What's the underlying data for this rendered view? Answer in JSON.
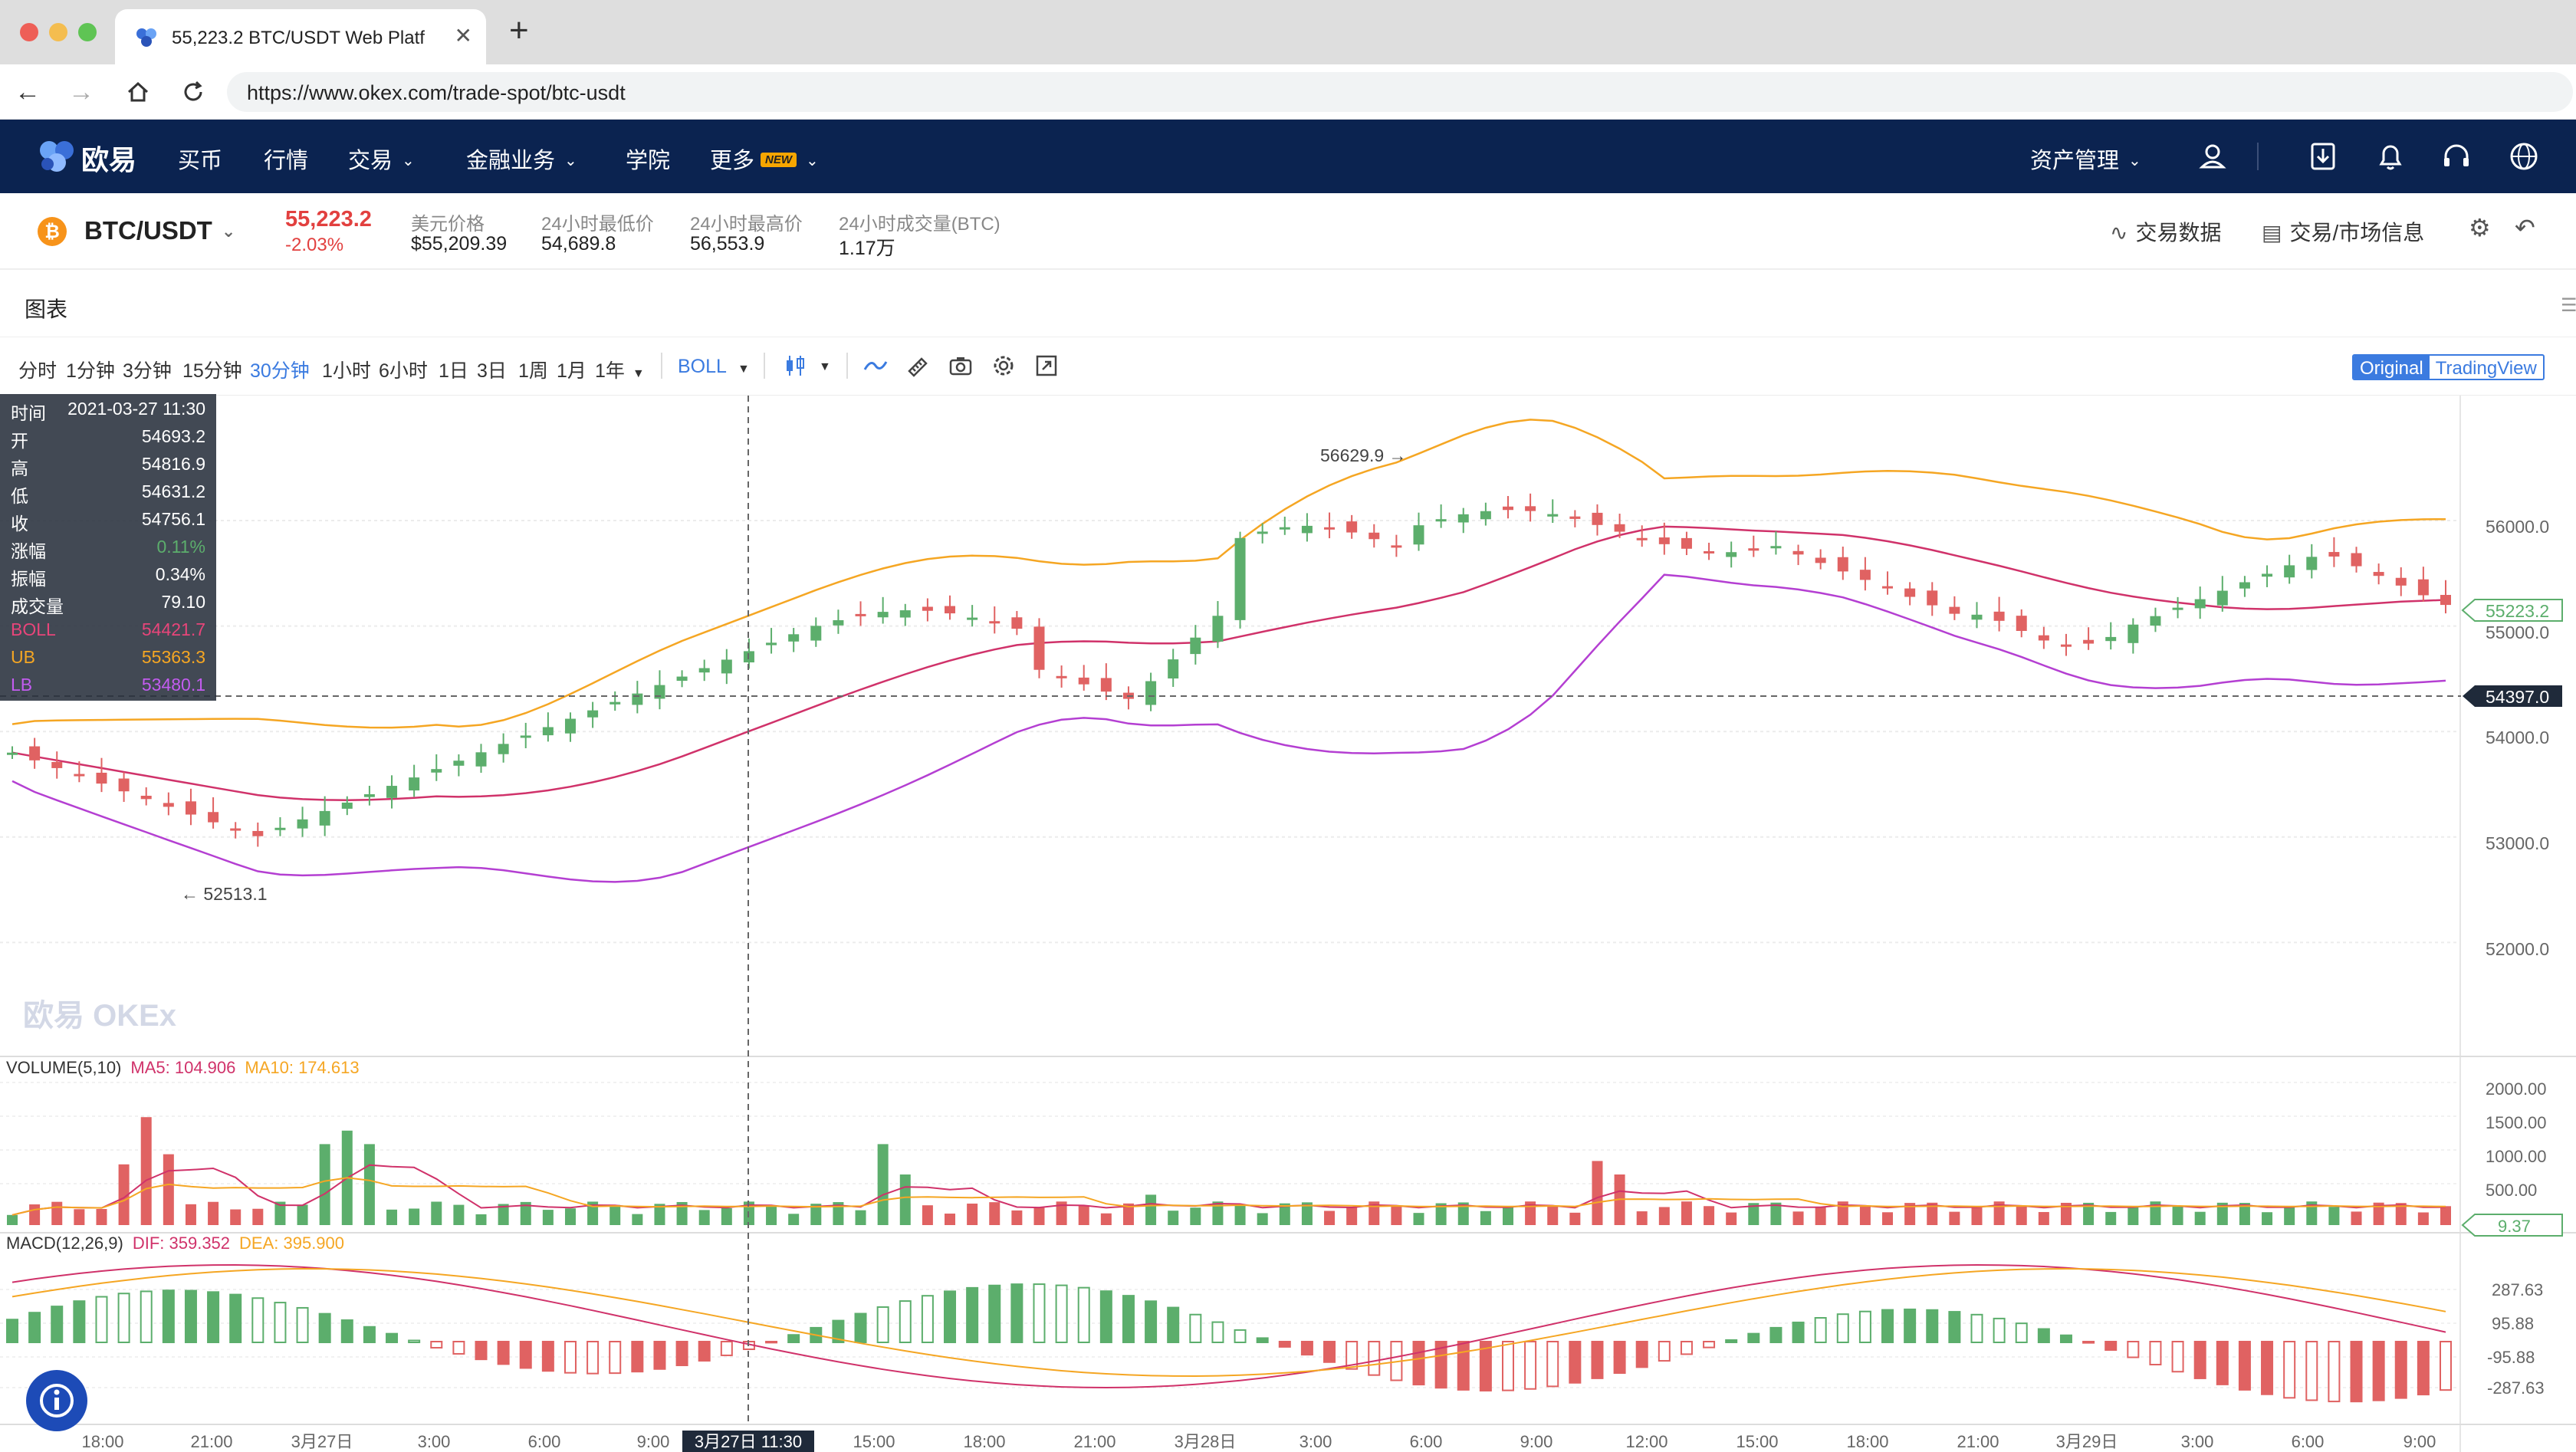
{
  "browser": {
    "tab_title": "55,223.2 BTC/USDT Web Platf",
    "url": "https://www.okex.com/trade-spot/btc-usdt"
  },
  "site_nav": {
    "logo_text": "欧易",
    "items": [
      "买币",
      "行情",
      "交易",
      "金融业务",
      "学院",
      "更多"
    ],
    "new_badge": "NEW",
    "asset_mgmt": "资产管理"
  },
  "ticker": {
    "pair": "BTC/USDT",
    "price": "55,223.2",
    "change": "-2.03%",
    "usd_label": "美元价格",
    "usd_value": "$55,209.39",
    "low_label": "24小时最低价",
    "low_value": "54,689.8",
    "high_label": "24小时最高价",
    "high_value": "56,553.9",
    "vol_label": "24小时成交量(BTC)",
    "vol_value": "1.17万",
    "trade_data": "交易数据",
    "market_info": "交易/市场信息"
  },
  "chart_section": {
    "title": "图表"
  },
  "toolbar": {
    "intervals": [
      "分时",
      "1分钟",
      "3分钟",
      "15分钟",
      "30分钟",
      "1小时",
      "6小时",
      "1日",
      "3日",
      "1周",
      "1月",
      "1年"
    ],
    "active_interval": "30分钟",
    "indicator": "BOLL",
    "view_original": "Original",
    "view_tradingview": "TradingView"
  },
  "info_panel": {
    "rows": [
      {
        "k": "时间",
        "v": "2021-03-27 11:30"
      },
      {
        "k": "开",
        "v": "54693.2"
      },
      {
        "k": "高",
        "v": "54816.9"
      },
      {
        "k": "低",
        "v": "54631.2"
      },
      {
        "k": "收",
        "v": "54756.1"
      },
      {
        "k": "涨幅",
        "v": "0.11%"
      },
      {
        "k": "振幅",
        "v": "0.34%"
      },
      {
        "k": "成交量",
        "v": "79.10"
      },
      {
        "k": "BOLL",
        "v": "54421.7"
      },
      {
        "k": "UB",
        "v": "55363.3"
      },
      {
        "k": "LB",
        "v": "53480.1"
      }
    ]
  },
  "price_axis": {
    "labels": [
      "56000.0",
      "55000.0",
      "54000.0",
      "53000.0",
      "52000.0"
    ],
    "current_price": "55223.2",
    "crosshair_price": "54397.0"
  },
  "annotations": {
    "high_marker": "56629.9",
    "low_marker": "52513.1",
    "watermark": "欧易 OKEx"
  },
  "volume_panel": {
    "label": "VOLUME(5,10)",
    "ma5": "MA5: 104.906",
    "ma10": "MA10: 174.613",
    "axis": [
      "2000.00",
      "1500.00",
      "1000.00",
      "500.00"
    ],
    "current": "9.37"
  },
  "macd_panel": {
    "label": "MACD(12,26,9)",
    "dif": "DIF: 359.352",
    "dea": "DEA: 395.900",
    "axis": [
      "287.63",
      "95.88",
      "-95.88",
      "-287.63"
    ]
  },
  "time_axis": {
    "labels": [
      "18:00",
      "21:00",
      "3月27日",
      "3:00",
      "6:00",
      "9:00",
      "15:00",
      "18:00",
      "21:00",
      "3月28日",
      "3:00",
      "6:00",
      "9:00",
      "12:00",
      "15:00",
      "18:00",
      "21:00",
      "3月29日",
      "3:00",
      "6:00",
      "9:00"
    ],
    "crosshair_time": "3月27日 11:30"
  },
  "colors": {
    "up": "#5cae6c",
    "down": "#e06262",
    "boll": "#d0326a",
    "ub": "#f5a623",
    "lb": "#b43fd2",
    "nav_bg": "#0b2350",
    "accent": "#3b7be0"
  }
}
